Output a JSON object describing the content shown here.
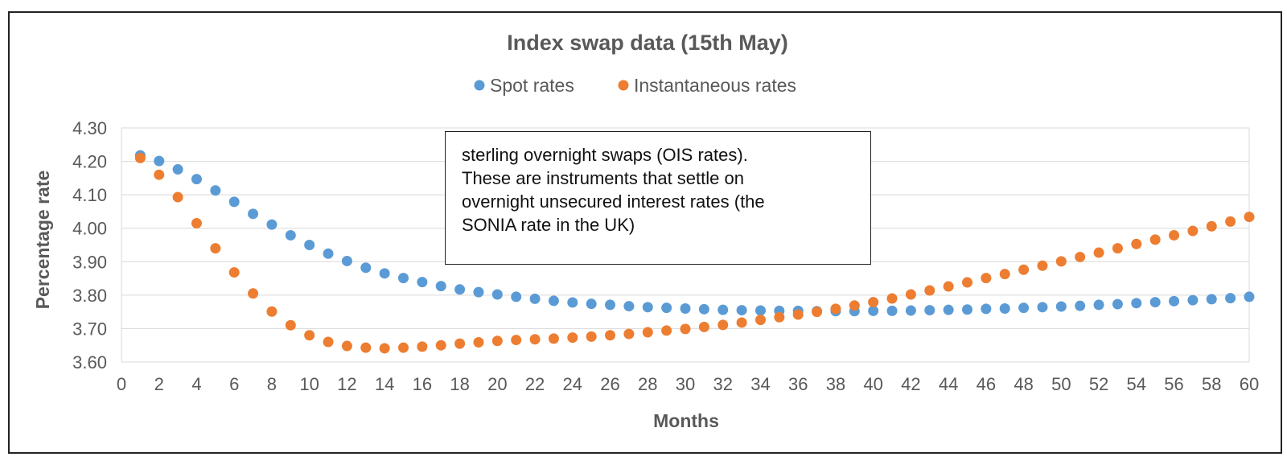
{
  "chart_data": {
    "type": "scatter",
    "title": "Index swap data (15th May)",
    "xlabel": "Months",
    "ylabel": "Percentage rate",
    "xlim": [
      0,
      60
    ],
    "ylim": [
      3.6,
      4.3
    ],
    "x_ticks": [
      "0",
      "2",
      "4",
      "6",
      "8",
      "10",
      "12",
      "14",
      "16",
      "18",
      "20",
      "22",
      "24",
      "26",
      "28",
      "30",
      "32",
      "34",
      "36",
      "38",
      "40",
      "42",
      "44",
      "46",
      "48",
      "50",
      "52",
      "54",
      "56",
      "58",
      "60"
    ],
    "y_ticks": [
      "3.60",
      "3.70",
      "3.80",
      "3.90",
      "4.00",
      "4.10",
      "4.20",
      "4.30"
    ],
    "grid": "horizontal",
    "legend_position": "top",
    "x": [
      1,
      2,
      3,
      4,
      5,
      6,
      7,
      8,
      9,
      10,
      11,
      12,
      13,
      14,
      15,
      16,
      17,
      18,
      19,
      20,
      21,
      22,
      23,
      24,
      25,
      26,
      27,
      28,
      29,
      30,
      31,
      32,
      33,
      34,
      35,
      36,
      37,
      38,
      39,
      40,
      41,
      42,
      43,
      44,
      45,
      46,
      47,
      48,
      49,
      50,
      51,
      52,
      53,
      54,
      55,
      56,
      57,
      58,
      59,
      60
    ],
    "series": [
      {
        "name": "Spot rates",
        "color": "#5B9BD5",
        "values": [
          4.218,
          4.201,
          4.176,
          4.147,
          4.113,
          4.079,
          4.043,
          4.011,
          3.979,
          3.95,
          3.924,
          3.902,
          3.882,
          3.865,
          3.851,
          3.839,
          3.827,
          3.817,
          3.809,
          3.802,
          3.795,
          3.789,
          3.783,
          3.778,
          3.774,
          3.771,
          3.767,
          3.764,
          3.762,
          3.76,
          3.758,
          3.756,
          3.755,
          3.754,
          3.753,
          3.753,
          3.752,
          3.752,
          3.752,
          3.753,
          3.753,
          3.754,
          3.755,
          3.756,
          3.757,
          3.759,
          3.76,
          3.762,
          3.764,
          3.766,
          3.768,
          3.771,
          3.773,
          3.776,
          3.779,
          3.782,
          3.785,
          3.788,
          3.791,
          3.795
        ]
      },
      {
        "name": "Instantaneous rates",
        "color": "#ED7D31",
        "values": [
          4.21,
          4.16,
          4.093,
          4.015,
          3.94,
          3.868,
          3.805,
          3.751,
          3.71,
          3.68,
          3.66,
          3.648,
          3.643,
          3.641,
          3.643,
          3.646,
          3.65,
          3.655,
          3.659,
          3.663,
          3.666,
          3.668,
          3.67,
          3.673,
          3.676,
          3.68,
          3.684,
          3.689,
          3.694,
          3.699,
          3.705,
          3.711,
          3.718,
          3.726,
          3.734,
          3.742,
          3.75,
          3.759,
          3.769,
          3.779,
          3.79,
          3.802,
          3.814,
          3.826,
          3.838,
          3.851,
          3.863,
          3.876,
          3.888,
          3.901,
          3.914,
          3.927,
          3.94,
          3.953,
          3.966,
          3.979,
          3.992,
          4.006,
          4.02,
          4.034
        ]
      }
    ],
    "annotation_lines": [
      "sterling overnight swaps (OIS rates).",
      "These are instruments that settle on",
      "overnight unsecured interest rates (the",
      "SONIA rate in the UK)"
    ]
  }
}
